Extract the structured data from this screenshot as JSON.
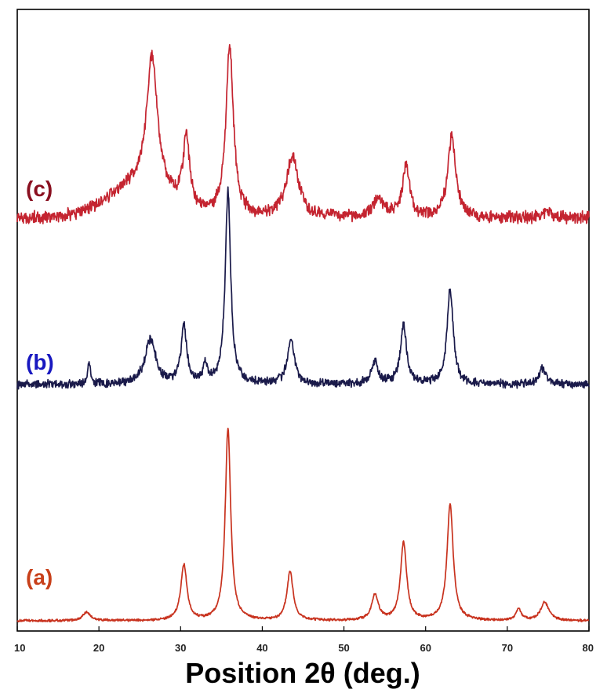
{
  "chart_data": {
    "type": "line",
    "title": "",
    "xlabel": "Position 2θ (deg.)",
    "ylabel": "",
    "xlim": [
      10,
      80
    ],
    "x_ticks": [
      "10",
      "20",
      "30",
      "40",
      "50",
      "60",
      "70",
      "80"
    ],
    "grid": false,
    "y_ticks_shown": false,
    "series": [
      {
        "name": "(a)",
        "color": "#c8321e",
        "baseline": 0.07,
        "noise": 0.012,
        "peaks": [
          [
            18.5,
            0.15,
            0.55
          ],
          [
            30.4,
            1.0,
            0.45
          ],
          [
            35.8,
            3.45,
            0.4
          ],
          [
            43.4,
            0.88,
            0.45
          ],
          [
            53.8,
            0.45,
            0.5
          ],
          [
            57.3,
            1.4,
            0.45
          ],
          [
            63.0,
            2.1,
            0.45
          ],
          [
            71.4,
            0.2,
            0.4
          ],
          [
            74.6,
            0.33,
            0.6
          ]
        ]
      },
      {
        "name": "(b)",
        "color": "#1a1a4a",
        "baseline": 0.1,
        "noise": 0.04,
        "peaks": [
          [
            18.8,
            0.4,
            0.2
          ],
          [
            26.3,
            0.8,
            0.8
          ],
          [
            30.4,
            1.06,
            0.4
          ],
          [
            33.0,
            0.35,
            0.3
          ],
          [
            35.8,
            3.45,
            0.4
          ],
          [
            43.5,
            0.8,
            0.5
          ],
          [
            53.8,
            0.4,
            0.5
          ],
          [
            57.3,
            1.05,
            0.45
          ],
          [
            63.0,
            1.7,
            0.45
          ],
          [
            74.3,
            0.3,
            0.5
          ]
        ]
      },
      {
        "name": "(c)",
        "color": "#c42430",
        "baseline": 0.1,
        "noise": 0.06,
        "broad": [
          [
            25.0,
            0.55,
            5.5
          ]
        ],
        "peaks": [
          [
            26.5,
            2.4,
            0.8
          ],
          [
            30.7,
            1.25,
            0.45
          ],
          [
            36.0,
            3.05,
            0.55
          ],
          [
            43.7,
            1.1,
            0.9
          ],
          [
            54.2,
            0.35,
            0.7
          ],
          [
            57.6,
            0.9,
            0.55
          ],
          [
            63.2,
            1.45,
            0.6
          ],
          [
            74.8,
            0.12,
            0.6
          ]
        ]
      }
    ]
  }
}
